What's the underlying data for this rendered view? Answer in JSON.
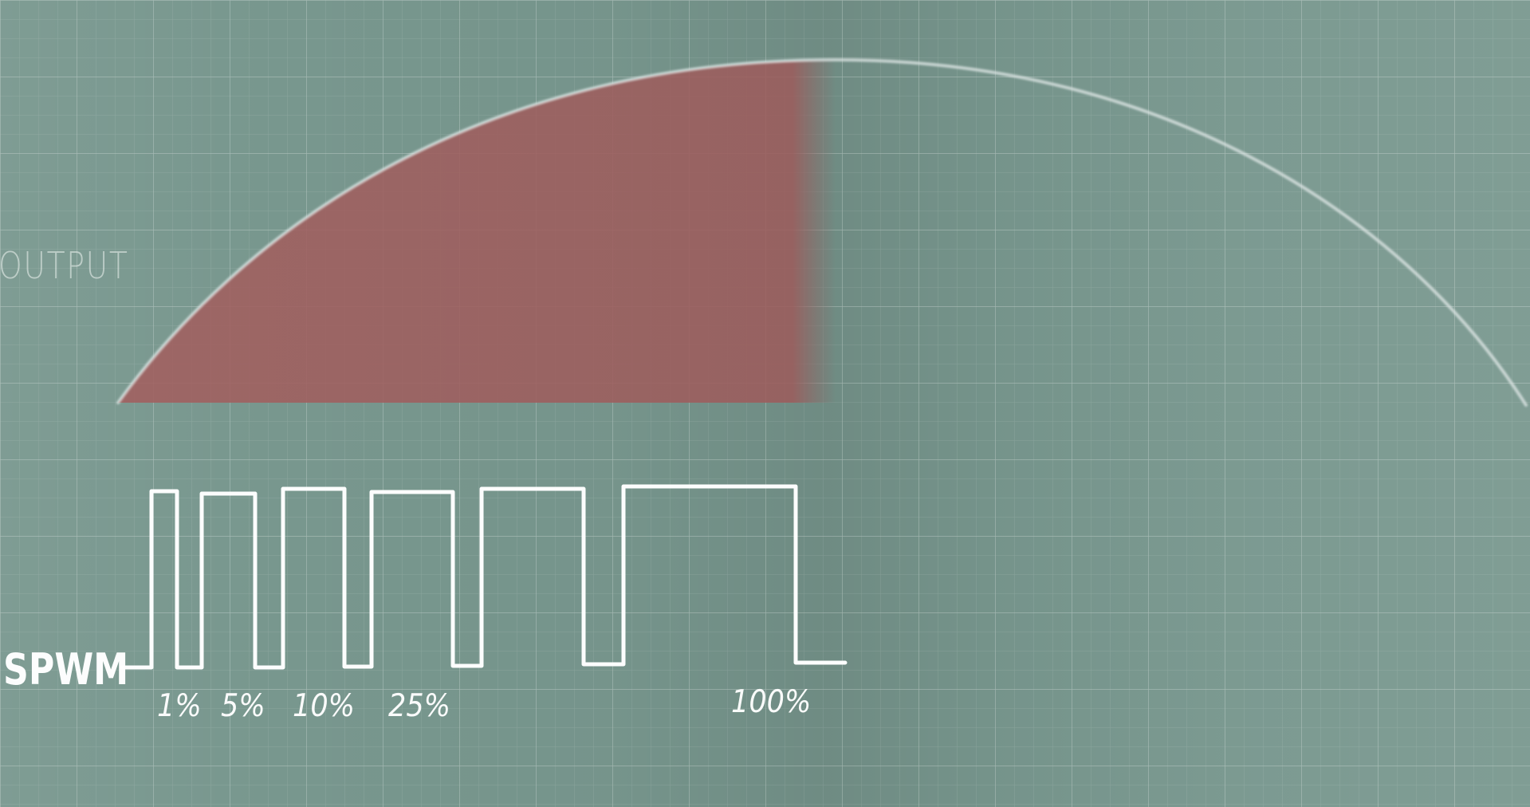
{
  "diagram": {
    "output_label": "OUTPUT",
    "spwm_label": "SPWM",
    "duty_labels": [
      "1%",
      "5%",
      "10%",
      "25%",
      "100%"
    ]
  }
}
